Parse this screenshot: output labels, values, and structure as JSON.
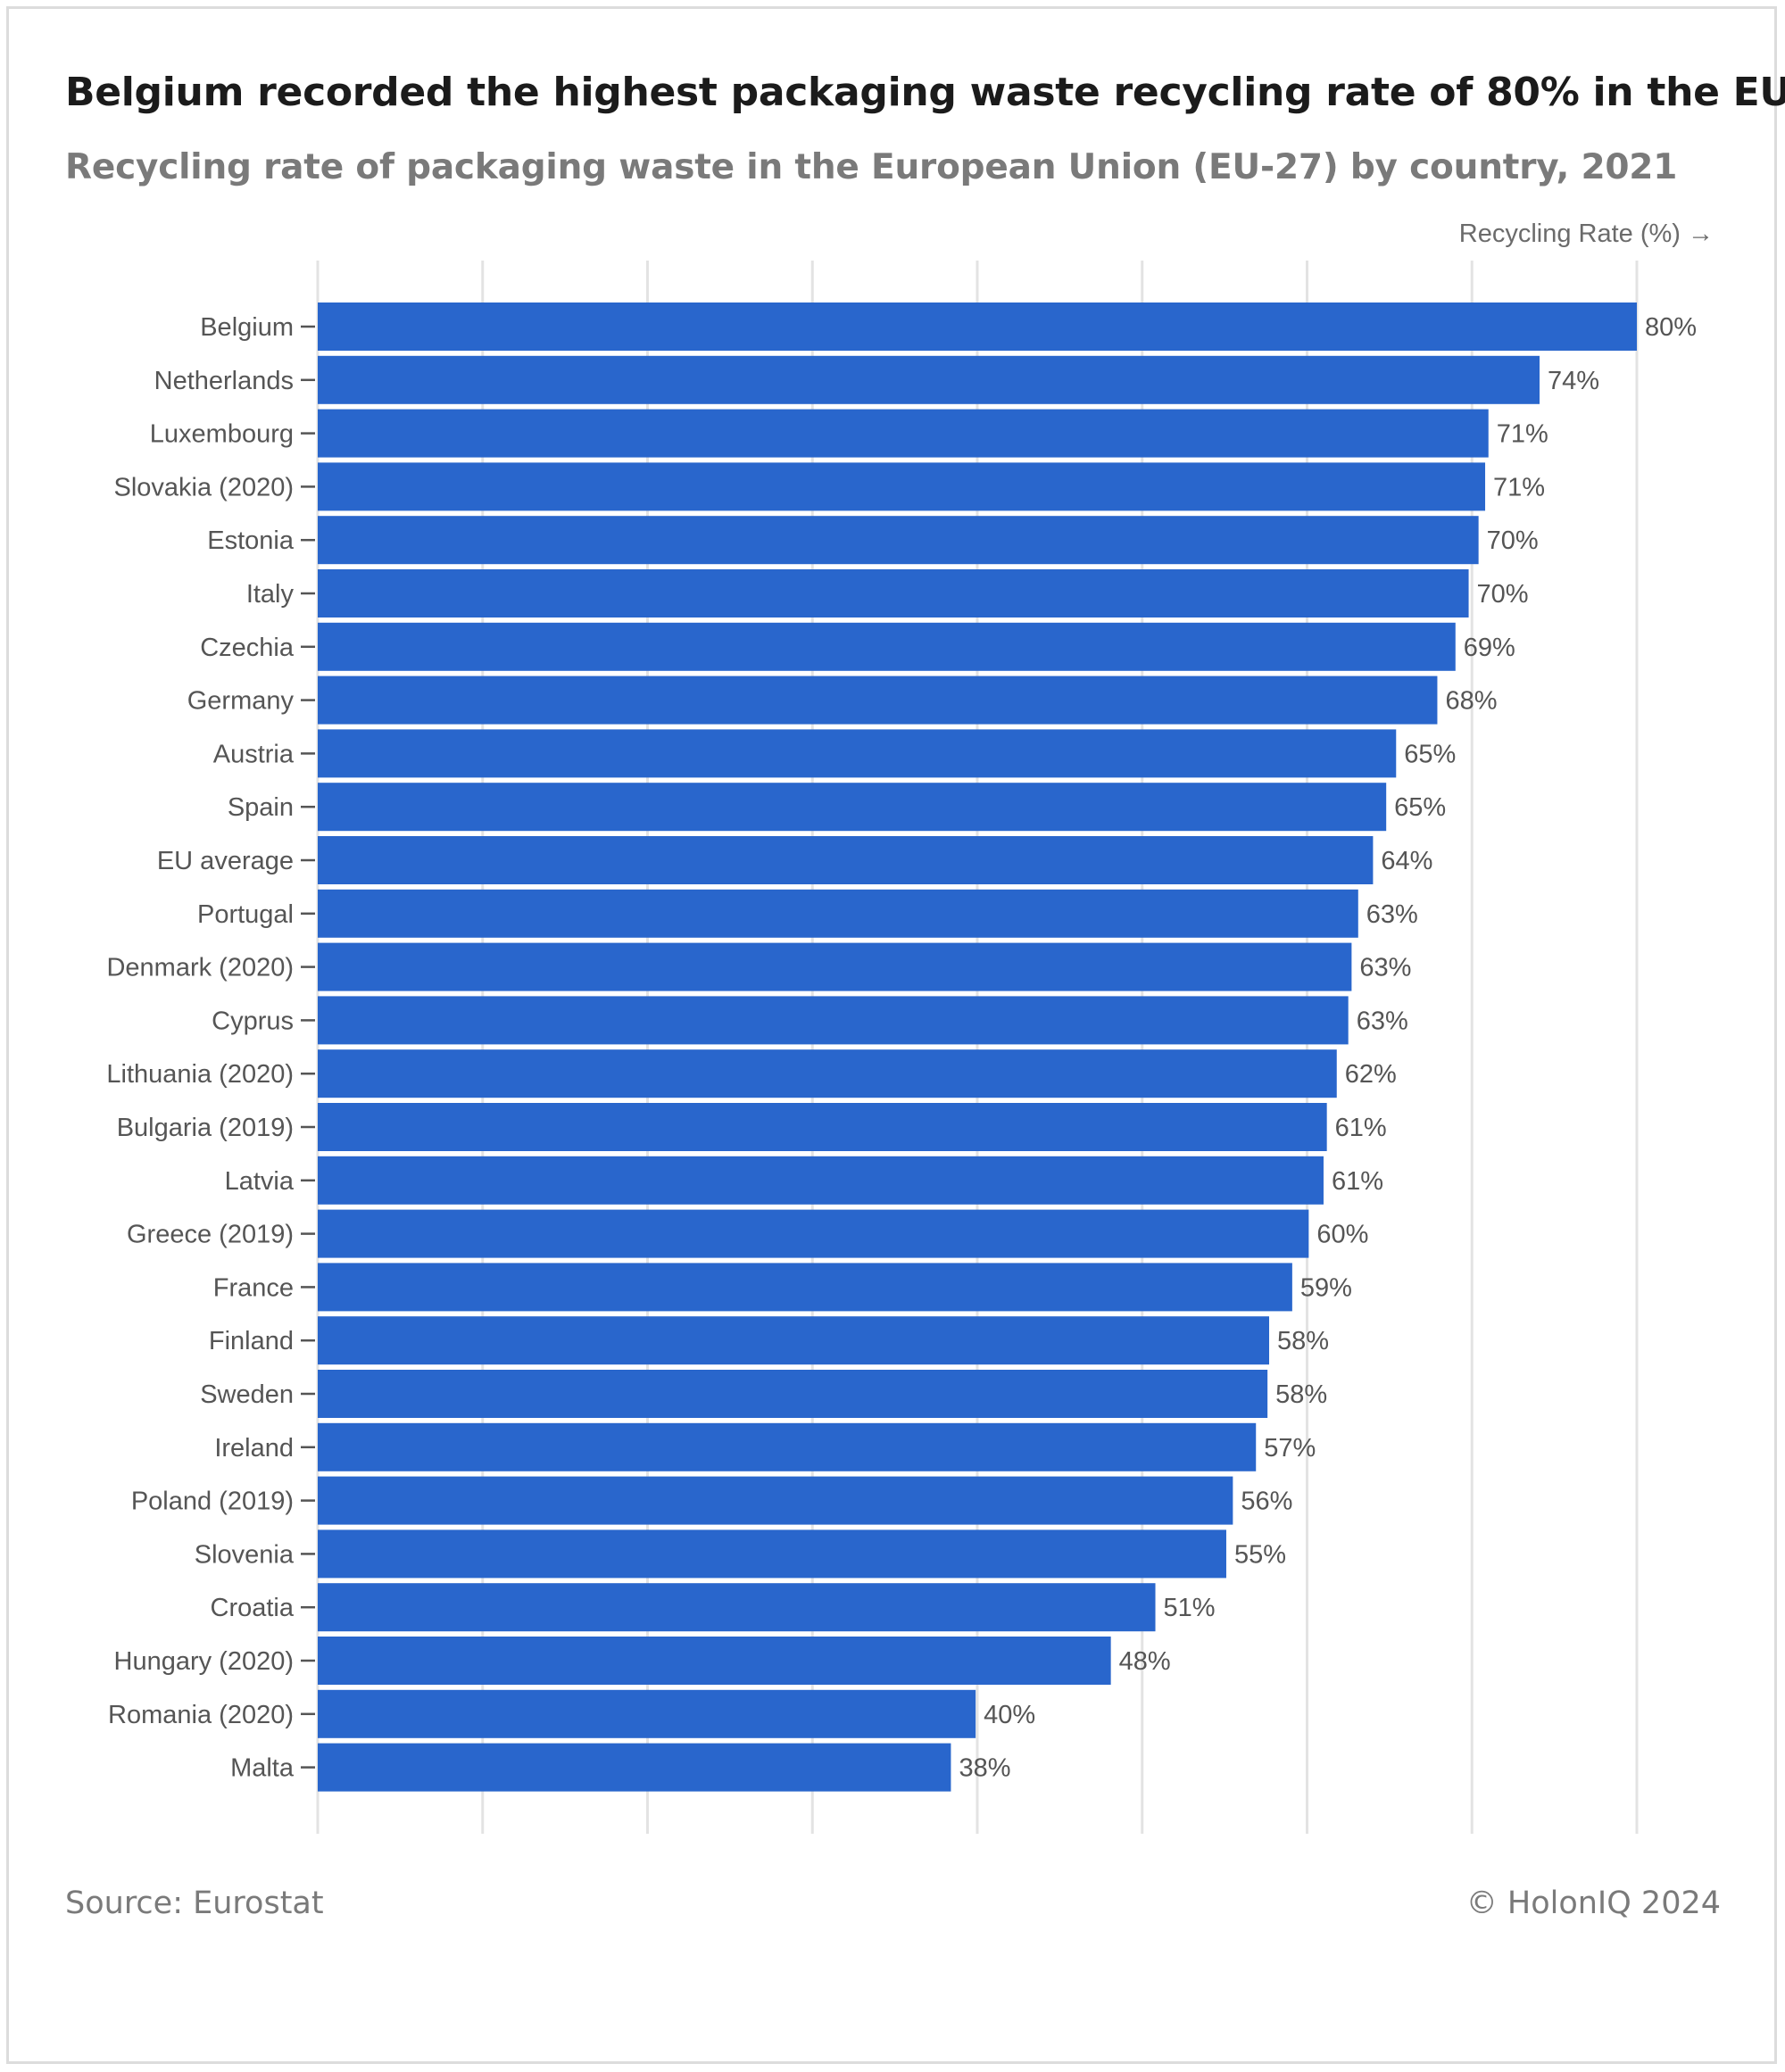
{
  "title": "Belgium recorded the highest packaging waste recycling rate of 80% in the EU",
  "subtitle": "Recycling rate of packaging waste in the European Union (EU-27) by country, 2021",
  "source": "Source: Eurostat",
  "credit": "© HolonIQ 2024",
  "colors": {
    "bar": "#2966cc",
    "grid": "#e3e3e3",
    "label": "#555555"
  },
  "chart_data": {
    "type": "bar",
    "orientation": "horizontal",
    "xlabel": "Recycling Rate (%) →",
    "ylabel": "",
    "xlim": [
      0,
      80
    ],
    "grid": true,
    "value_format": "%",
    "categories": [
      "Belgium",
      "Netherlands",
      "Luxembourg",
      "Slovakia (2020)",
      "Estonia",
      "Italy",
      "Czechia",
      "Germany",
      "Austria",
      "Spain",
      "EU average",
      "Portugal",
      "Denmark (2020)",
      "Cyprus",
      "Lithuania (2020)",
      "Bulgaria (2019)",
      "Latvia",
      "Greece (2019)",
      "France",
      "Finland",
      "Sweden",
      "Ireland",
      "Poland (2019)",
      "Slovenia",
      "Croatia",
      "Hungary (2020)",
      "Romania (2020)",
      "Malta"
    ],
    "values": [
      80,
      74.1,
      71,
      70.8,
      70.4,
      69.8,
      69,
      67.9,
      65.4,
      64.8,
      64,
      63.1,
      62.7,
      62.5,
      61.8,
      61.2,
      61,
      60.1,
      59.1,
      57.7,
      57.6,
      56.9,
      55.5,
      55.1,
      50.8,
      48.1,
      39.9,
      38.4
    ],
    "labels": [
      "80%",
      "74%",
      "71%",
      "71%",
      "70%",
      "70%",
      "69%",
      "68%",
      "65%",
      "65%",
      "64%",
      "63%",
      "63%",
      "63%",
      "62%",
      "61%",
      "61%",
      "60%",
      "59%",
      "58%",
      "58%",
      "57%",
      "56%",
      "55%",
      "51%",
      "48%",
      "40%",
      "38%"
    ]
  }
}
